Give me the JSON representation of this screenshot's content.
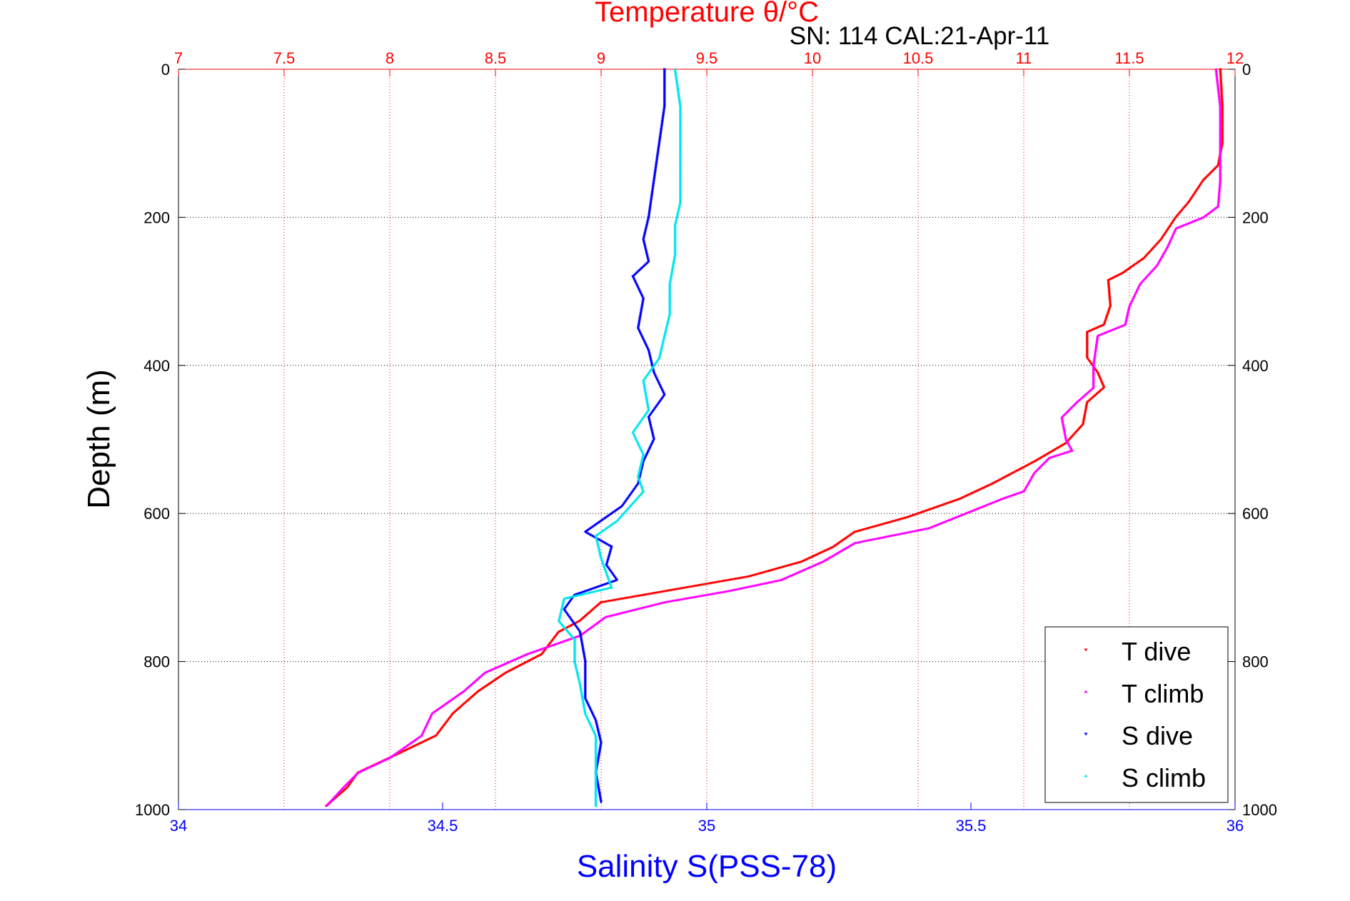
{
  "chart_data": {
    "type": "scatter",
    "title": "Temperature θ/°C",
    "subtitle": "SN: 114  CAL:21-Apr-11",
    "ylabel": "Depth (m)",
    "xlabel": "Salinity S(PSS-78)",
    "y_axis": {
      "range": [
        0,
        1000
      ],
      "reversed": true,
      "ticks": [
        0,
        200,
        400,
        600,
        800,
        1000
      ],
      "tick_labels": [
        "0",
        "200",
        "400",
        "600",
        "800",
        "1000"
      ]
    },
    "temperature_axis": {
      "position": "top",
      "range": [
        7,
        12
      ],
      "ticks": [
        7,
        7.5,
        8,
        8.5,
        9,
        9.5,
        10,
        10.5,
        11,
        11.5,
        12
      ],
      "tick_labels": [
        "7",
        "7.5",
        "8",
        "8.5",
        "9",
        "9.5",
        "10",
        "10.5",
        "11",
        "11.5",
        "12"
      ],
      "color": "#ff0000"
    },
    "salinity_axis": {
      "position": "bottom",
      "range": [
        34,
        36
      ],
      "ticks": [
        34,
        34.5,
        35,
        35.5,
        36
      ],
      "tick_labels": [
        "34",
        "34.5",
        "35",
        "35.5",
        "36"
      ],
      "color": "#0000ff"
    },
    "grid": true,
    "legend_position": "bottom-right",
    "series": [
      {
        "name": "T dive",
        "axis": "temperature",
        "color": "#ff0000",
        "marker": "triangle-down",
        "points": [
          [
            11.93,
            0
          ],
          [
            11.94,
            50
          ],
          [
            11.94,
            100
          ],
          [
            11.92,
            130
          ],
          [
            11.85,
            150
          ],
          [
            11.78,
            180
          ],
          [
            11.72,
            200
          ],
          [
            11.65,
            230
          ],
          [
            11.57,
            255
          ],
          [
            11.47,
            275
          ],
          [
            11.4,
            285
          ],
          [
            11.41,
            320
          ],
          [
            11.38,
            345
          ],
          [
            11.3,
            355
          ],
          [
            11.3,
            390
          ],
          [
            11.35,
            410
          ],
          [
            11.38,
            430
          ],
          [
            11.3,
            450
          ],
          [
            11.28,
            480
          ],
          [
            11.2,
            505
          ],
          [
            11.05,
            530
          ],
          [
            10.85,
            560
          ],
          [
            10.7,
            580
          ],
          [
            10.45,
            605
          ],
          [
            10.2,
            625
          ],
          [
            10.1,
            645
          ],
          [
            9.95,
            665
          ],
          [
            9.7,
            685
          ],
          [
            9.3,
            705
          ],
          [
            9.0,
            720
          ],
          [
            8.9,
            745
          ],
          [
            8.8,
            760
          ],
          [
            8.72,
            790
          ],
          [
            8.55,
            815
          ],
          [
            8.42,
            840
          ],
          [
            8.3,
            870
          ],
          [
            8.22,
            900
          ],
          [
            8.0,
            930
          ],
          [
            7.85,
            950
          ],
          [
            7.8,
            970
          ],
          [
            7.7,
            995
          ]
        ]
      },
      {
        "name": "T climb",
        "axis": "temperature",
        "color": "#ff00ff",
        "marker": "triangle-up",
        "points": [
          [
            11.91,
            0
          ],
          [
            11.93,
            50
          ],
          [
            11.93,
            100
          ],
          [
            11.93,
            150
          ],
          [
            11.92,
            185
          ],
          [
            11.85,
            200
          ],
          [
            11.72,
            215
          ],
          [
            11.68,
            240
          ],
          [
            11.63,
            265
          ],
          [
            11.55,
            290
          ],
          [
            11.5,
            320
          ],
          [
            11.48,
            345
          ],
          [
            11.35,
            360
          ],
          [
            11.33,
            400
          ],
          [
            11.33,
            430
          ],
          [
            11.25,
            450
          ],
          [
            11.18,
            470
          ],
          [
            11.2,
            500
          ],
          [
            11.23,
            515
          ],
          [
            11.12,
            525
          ],
          [
            11.05,
            545
          ],
          [
            11.0,
            570
          ],
          [
            10.9,
            580
          ],
          [
            10.55,
            620
          ],
          [
            10.2,
            640
          ],
          [
            10.05,
            665
          ],
          [
            9.85,
            690
          ],
          [
            9.6,
            705
          ],
          [
            9.3,
            720
          ],
          [
            9.02,
            740
          ],
          [
            8.9,
            765
          ],
          [
            8.65,
            790
          ],
          [
            8.45,
            815
          ],
          [
            8.35,
            840
          ],
          [
            8.2,
            870
          ],
          [
            8.15,
            900
          ],
          [
            8.0,
            930
          ],
          [
            7.85,
            950
          ],
          [
            7.78,
            970
          ],
          [
            7.7,
            995
          ]
        ]
      },
      {
        "name": "S dive",
        "axis": "salinity",
        "color": "#0000ff",
        "marker": "triangle-down",
        "points": [
          [
            34.92,
            0
          ],
          [
            34.92,
            50
          ],
          [
            34.91,
            100
          ],
          [
            34.9,
            150
          ],
          [
            34.89,
            200
          ],
          [
            34.88,
            230
          ],
          [
            34.89,
            260
          ],
          [
            34.86,
            280
          ],
          [
            34.88,
            310
          ],
          [
            34.87,
            350
          ],
          [
            34.89,
            380
          ],
          [
            34.9,
            410
          ],
          [
            34.92,
            440
          ],
          [
            34.89,
            470
          ],
          [
            34.9,
            500
          ],
          [
            34.88,
            530
          ],
          [
            34.87,
            560
          ],
          [
            34.84,
            590
          ],
          [
            34.8,
            610
          ],
          [
            34.77,
            625
          ],
          [
            34.82,
            645
          ],
          [
            34.81,
            670
          ],
          [
            34.83,
            690
          ],
          [
            34.75,
            710
          ],
          [
            34.73,
            730
          ],
          [
            34.76,
            760
          ],
          [
            34.77,
            800
          ],
          [
            34.77,
            850
          ],
          [
            34.79,
            880
          ],
          [
            34.8,
            910
          ],
          [
            34.79,
            950
          ],
          [
            34.8,
            990
          ]
        ]
      },
      {
        "name": "S climb",
        "axis": "salinity",
        "color": "#00e5ee",
        "marker": "triangle-up",
        "points": [
          [
            34.94,
            0
          ],
          [
            34.95,
            50
          ],
          [
            34.95,
            100
          ],
          [
            34.95,
            150
          ],
          [
            34.95,
            180
          ],
          [
            34.94,
            210
          ],
          [
            34.94,
            250
          ],
          [
            34.93,
            290
          ],
          [
            34.93,
            330
          ],
          [
            34.92,
            360
          ],
          [
            34.91,
            390
          ],
          [
            34.88,
            420
          ],
          [
            34.89,
            460
          ],
          [
            34.86,
            490
          ],
          [
            34.88,
            520
          ],
          [
            34.87,
            550
          ],
          [
            34.88,
            570
          ],
          [
            34.83,
            610
          ],
          [
            34.79,
            630
          ],
          [
            34.8,
            660
          ],
          [
            34.82,
            700
          ],
          [
            34.73,
            715
          ],
          [
            34.72,
            745
          ],
          [
            34.75,
            770
          ],
          [
            34.75,
            800
          ],
          [
            34.76,
            830
          ],
          [
            34.77,
            870
          ],
          [
            34.79,
            900
          ],
          [
            34.79,
            940
          ],
          [
            34.79,
            970
          ],
          [
            34.79,
            995
          ]
        ]
      }
    ]
  }
}
